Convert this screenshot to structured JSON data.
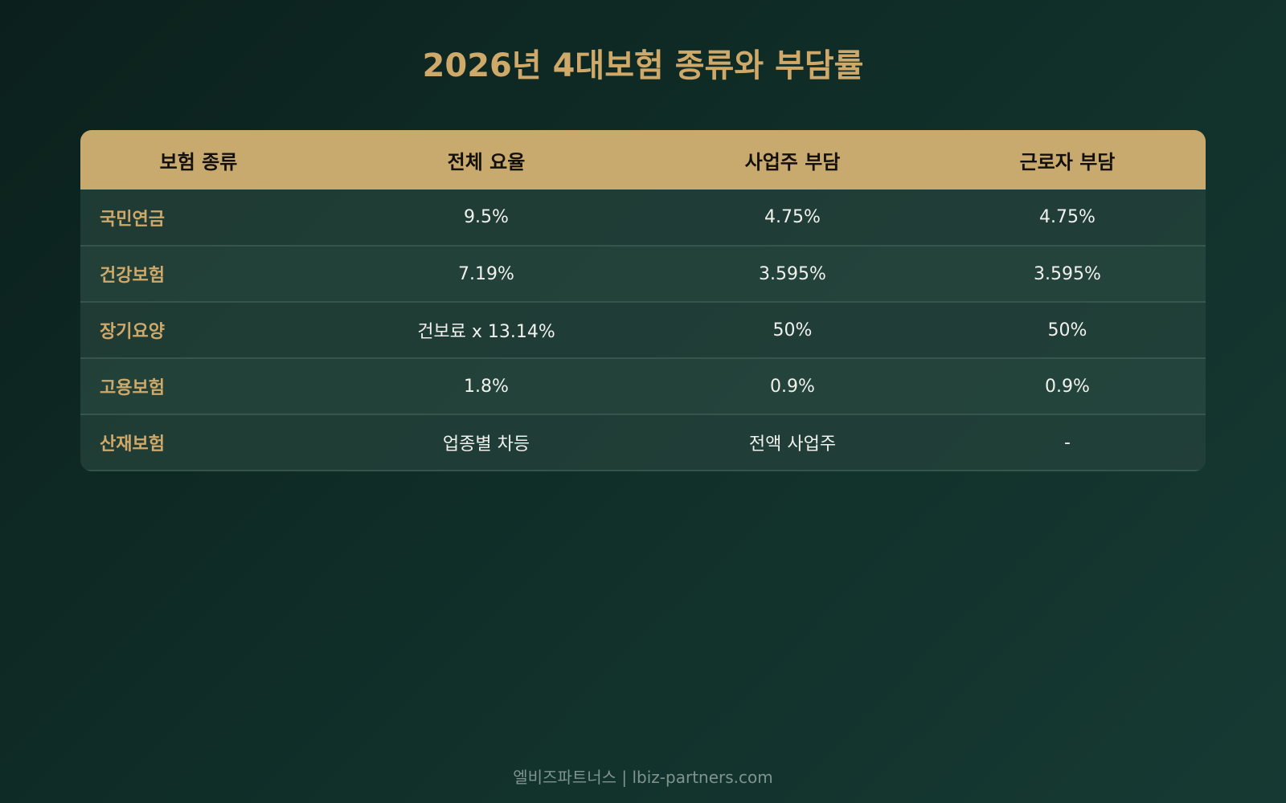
{
  "page": {
    "title": "2026년 4대보험 종류와 부담률",
    "footer": "엘비즈파트너스 | lbiz-partners.com"
  },
  "table": {
    "headers": [
      "보험 종류",
      "전체 요율",
      "사업주 부담",
      "근로자 부담"
    ],
    "rows": [
      [
        "국민연금",
        "9.5%",
        "4.75%",
        "4.75%"
      ],
      [
        "건강보험",
        "7.19%",
        "3.595%",
        "3.595%"
      ],
      [
        "장기요양",
        "건보료 x 13.14%",
        "50%",
        "50%"
      ],
      [
        "고용보험",
        "1.8%",
        "0.9%",
        "0.9%"
      ],
      [
        "산재보험",
        "업종별 차등",
        "전액 사업주",
        "-"
      ]
    ]
  },
  "colors": {
    "accent_gold": "#c8a96e",
    "background": "#11302a"
  }
}
